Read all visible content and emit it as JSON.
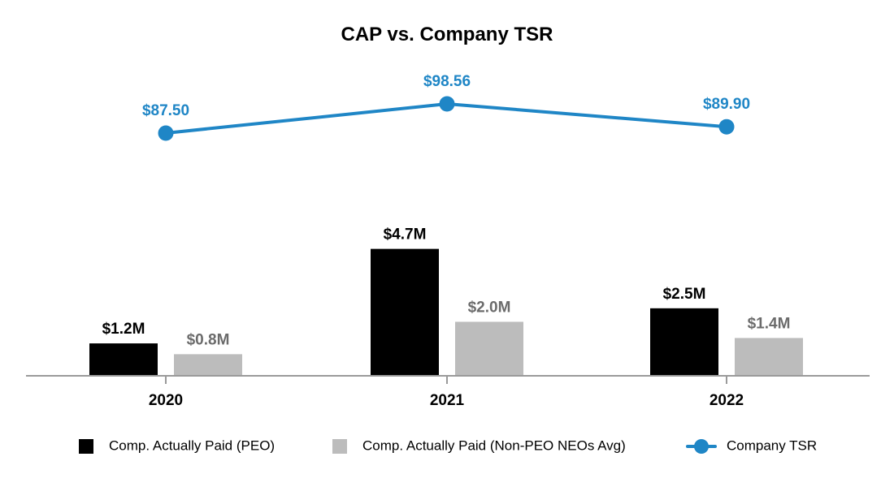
{
  "chart_data": {
    "type": "bar",
    "title": "CAP vs. Company TSR",
    "categories": [
      "2020",
      "2021",
      "2022"
    ],
    "bar_series": [
      {
        "name": "Comp. Actually Paid (PEO)",
        "values": [
          1.2,
          4.7,
          2.5
        ],
        "labels": [
          "$1.2M",
          "$4.7M",
          "$2.5M"
        ],
        "color": "#000000",
        "label_color": "#000000"
      },
      {
        "name": "Comp. Actually Paid (Non-PEO NEOs Avg)",
        "values": [
          0.8,
          2.0,
          1.4
        ],
        "labels": [
          "$0.8M",
          "$2.0M",
          "$1.4M"
        ],
        "color": "#bcbcbc",
        "label_color": "#6b6b6b"
      }
    ],
    "line_series": [
      {
        "name": "Company TSR",
        "values": [
          87.5,
          98.56,
          89.9
        ],
        "labels": [
          "$87.50",
          "$98.56",
          "$89.90"
        ],
        "color": "#1f86c6",
        "label_color": "#1f86c6"
      }
    ],
    "bar_ylim": [
      0,
      5.2
    ],
    "line_ylim": [
      75,
      102
    ],
    "grid": false,
    "legend_position": "bottom"
  }
}
